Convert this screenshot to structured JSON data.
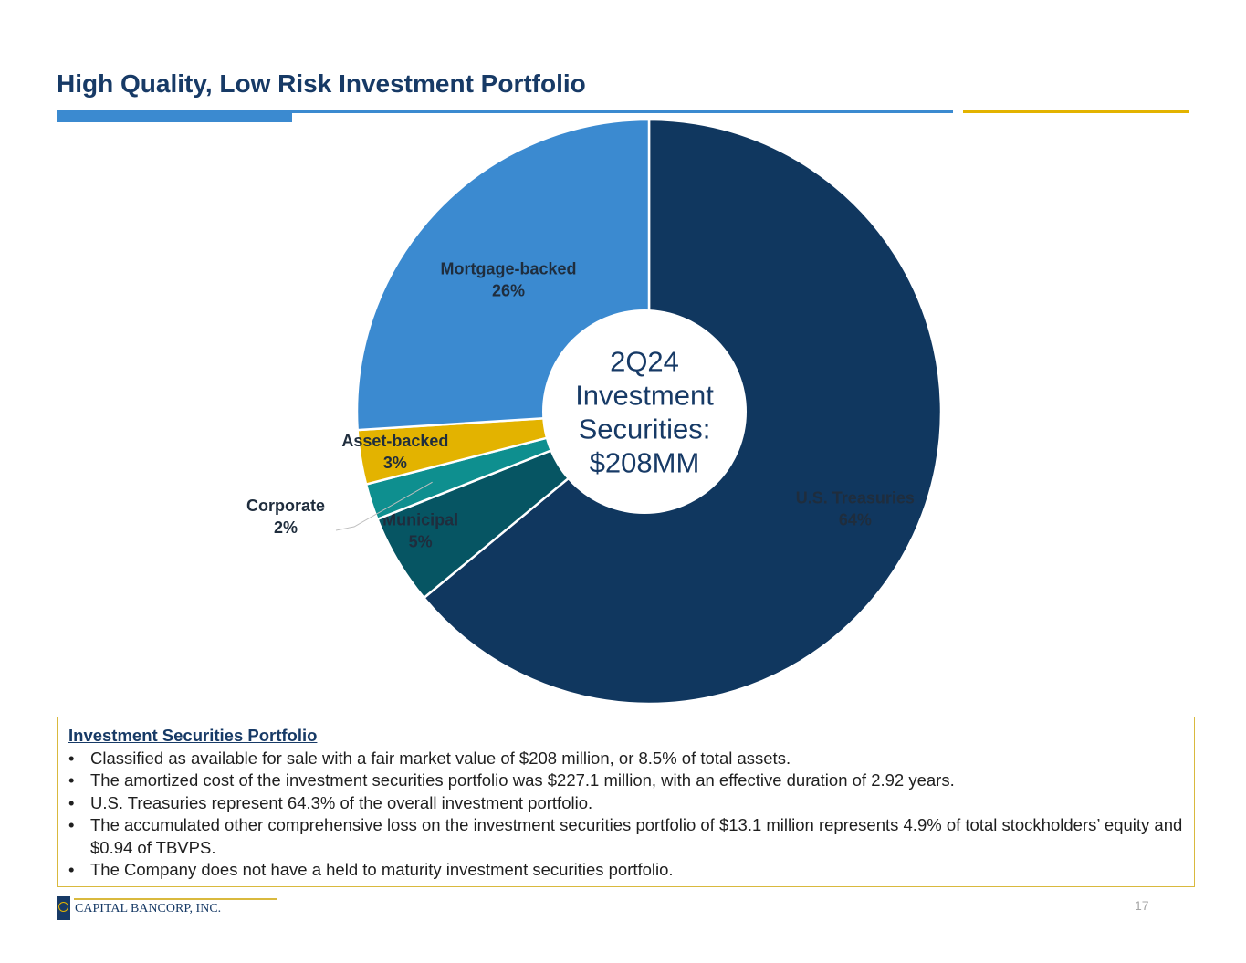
{
  "header": {
    "title": "High Quality, Low Risk Investment Portfolio"
  },
  "chart_data": {
    "type": "pie",
    "style": "donut",
    "title": "",
    "center_label": [
      "2Q24",
      "Investment",
      "Securities:",
      "$208MM"
    ],
    "slices": [
      {
        "name": "U.S. Treasuries",
        "value": 64,
        "label": "64%",
        "color": "#10375f"
      },
      {
        "name": "Municipal",
        "value": 5,
        "label": "5%",
        "color": "#065563"
      },
      {
        "name": "Corporate",
        "value": 2,
        "label": "2%",
        "color": "#0e8f8f"
      },
      {
        "name": "Asset-backed",
        "value": 3,
        "label": "3%",
        "color": "#e3b300"
      },
      {
        "name": "Mortgage-backed",
        "value": 26,
        "label": "26%",
        "color": "#3b8ad0"
      }
    ],
    "legend": "none"
  },
  "info": {
    "heading": "Investment Securities Portfolio",
    "bullets": [
      "Classified as available for sale with a fair market value of $208 million, or 8.5% of total assets.",
      "The amortized cost of the investment securities portfolio was $227.1 million, with an effective duration of 2.92 years.",
      "U.S. Treasuries represent 64.3% of the overall investment portfolio.",
      "The accumulated other comprehensive loss on the investment securities portfolio of $13.1 million represents 4.9% of total stockholders’ equity and $0.94 of TBVPS.",
      "The Company does not have a held to maturity investment securities portfolio."
    ]
  },
  "footer": {
    "logo_text": "CAPITAL BANCORP, INC.",
    "page_number": "17"
  },
  "colors": {
    "title": "#173a66",
    "accent_blue": "#3b8ad0",
    "accent_gold": "#e3b300"
  }
}
